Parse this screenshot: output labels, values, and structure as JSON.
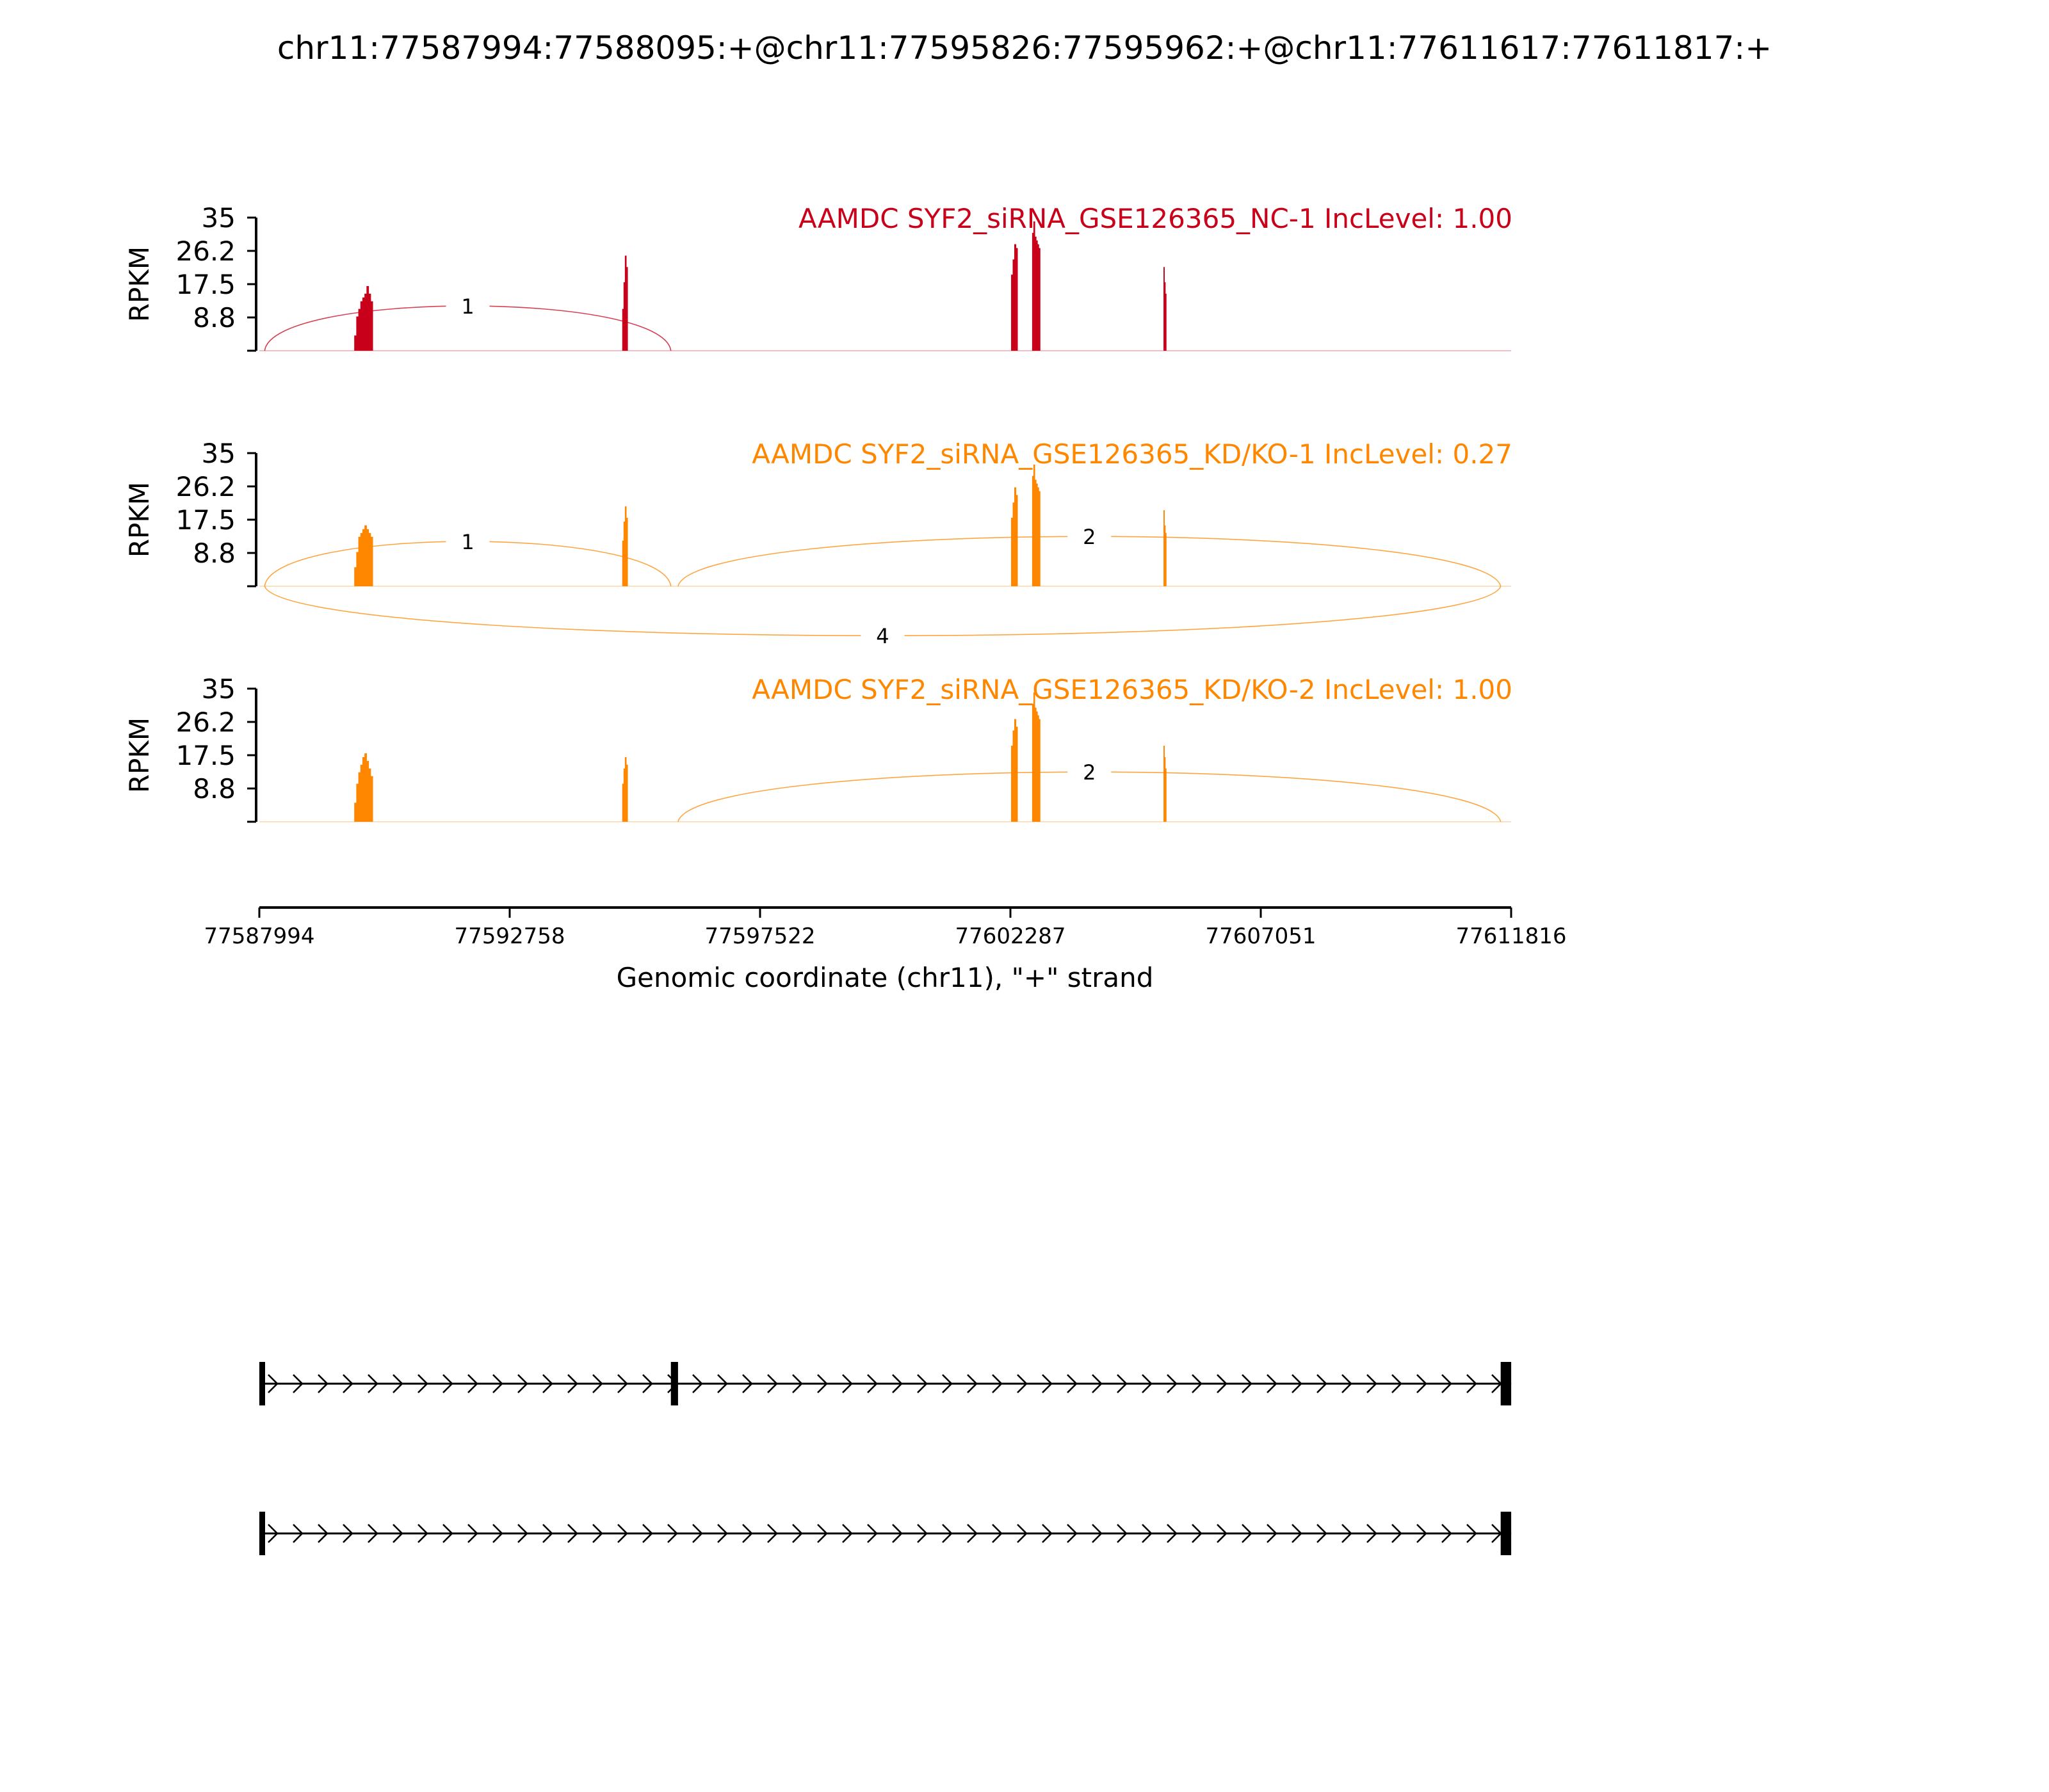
{
  "figure": {
    "title": "chr11:77587994:77588095:+@chr11:77595826:77595962:+@chr11:77611617:77611817:+"
  },
  "chart_data": {
    "type": "sashimi",
    "ylabel": "RPKM",
    "ylim": [
      0,
      35
    ],
    "yticks": [
      "35",
      "26.2",
      "17.5",
      "8.8"
    ],
    "xlabel": "Genomic coordinate (chr11), \"+\" strand",
    "xlim": [
      77587994,
      77611816
    ],
    "xticks": [
      "77587994",
      "77592758",
      "77597522",
      "77602287",
      "77607051",
      "77611816"
    ],
    "tracks": [
      {
        "label": "AAMDC SYF2_siRNA_GSE126365_NC-1 IncLevel: 1.00",
        "color": "#c8001a",
        "coverage": [
          {
            "start": 77589800,
            "end": 77590150,
            "values": [
              4,
              9,
              11,
              13,
              14,
              15,
              17,
              15,
              13
            ]
          },
          {
            "start": 77594900,
            "end": 77595000,
            "values": [
              11,
              18,
              25,
              22
            ]
          },
          {
            "start": 77602300,
            "end": 77602420,
            "values": [
              20,
              24,
              28,
              27
            ]
          },
          {
            "start": 77602700,
            "end": 77602850,
            "values": [
              31,
              34,
              30,
              29,
              28,
              27
            ]
          },
          {
            "start": 77605200,
            "end": 77605250,
            "values": [
              22,
              18,
              15
            ]
          }
        ],
        "junctions": [
          {
            "start": 77588095,
            "end": 77595826,
            "count": "1",
            "side": "above"
          }
        ]
      },
      {
        "label": "AAMDC SYF2_siRNA_GSE126365_KD/KO-1 IncLevel: 0.27",
        "color": "#ff8700",
        "coverage": [
          {
            "start": 77589800,
            "end": 77590150,
            "values": [
              5,
              9,
              13,
              14,
              15,
              16,
              15,
              14,
              13
            ]
          },
          {
            "start": 77594900,
            "end": 77595000,
            "values": [
              12,
              17,
              21,
              18
            ]
          },
          {
            "start": 77602300,
            "end": 77602420,
            "values": [
              18,
              22,
              26,
              24
            ]
          },
          {
            "start": 77602700,
            "end": 77602850,
            "values": [
              29,
              32,
              28,
              27,
              26,
              25
            ]
          },
          {
            "start": 77605200,
            "end": 77605250,
            "values": [
              20,
              16,
              14
            ]
          }
        ],
        "junctions": [
          {
            "start": 77588095,
            "end": 77595826,
            "count": "1",
            "side": "above"
          },
          {
            "start": 77595962,
            "end": 77611617,
            "count": "2",
            "side": "above"
          },
          {
            "start": 77588095,
            "end": 77611617,
            "count": "4",
            "side": "below"
          }
        ]
      },
      {
        "label": "AAMDC SYF2_siRNA_GSE126365_KD/KO-2 IncLevel: 1.00",
        "color": "#ff8700",
        "coverage": [
          {
            "start": 77589800,
            "end": 77590150,
            "values": [
              5,
              10,
              13,
              15,
              17,
              18,
              16,
              14,
              12
            ]
          },
          {
            "start": 77594900,
            "end": 77595000,
            "values": [
              10,
              14,
              17,
              15
            ]
          },
          {
            "start": 77602300,
            "end": 77602420,
            "values": [
              20,
              24,
              27,
              25
            ]
          },
          {
            "start": 77602700,
            "end": 77602850,
            "values": [
              31,
              34,
              30,
              29,
              28,
              27
            ]
          },
          {
            "start": 77605200,
            "end": 77605250,
            "values": [
              20,
              17,
              14
            ]
          }
        ],
        "junctions": [
          {
            "start": 77595962,
            "end": 77611617,
            "count": "2",
            "side": "above"
          }
        ]
      }
    ],
    "isoforms": [
      {
        "exons": [
          [
            77587994,
            77588095
          ],
          [
            77595826,
            77595962
          ],
          [
            77611617,
            77611817
          ]
        ]
      },
      {
        "exons": [
          [
            77587994,
            77588095
          ],
          [
            77611617,
            77611817
          ]
        ]
      }
    ]
  }
}
